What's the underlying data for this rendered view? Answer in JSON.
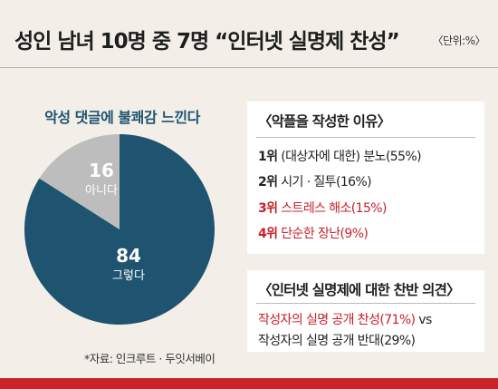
{
  "header": {
    "title": "성인 남녀 10명 중 7명 “인터넷 실명제 찬성”",
    "unit": "〈단위:%〉"
  },
  "chart_data": {
    "type": "pie",
    "title": "악성 댓글에 불쾌감 느낀다",
    "slices": [
      {
        "label": "그렇다",
        "value": 84,
        "color": "#1f5470"
      },
      {
        "label": "아니다",
        "value": 16,
        "color": "#bdbdbd"
      }
    ]
  },
  "source": "*자료: 인크루트 · 두잇서베이",
  "reasons_panel": {
    "title": "〈악플을 작성한 이유〉",
    "items": [
      {
        "rank": "1위",
        "text": "(대상자에 대한) 분노(55%)",
        "color": "dark"
      },
      {
        "rank": "2위",
        "text": "시기 · 질투(16%)",
        "color": "dark"
      },
      {
        "rank": "3위",
        "text": "스트레스 해소(15%)",
        "color": "red"
      },
      {
        "rank": "4위",
        "text": "단순한 장난(9%)",
        "color": "red"
      }
    ]
  },
  "opinion_panel": {
    "title": "〈인터넷 실명제에 대한 찬반 의견〉",
    "agree": "작성자의 실명 공개 찬성(71%)",
    "vs": "vs",
    "disagree": "작성자의 실명 공개 반대(29%)"
  },
  "colors": {
    "accent_red": "#c8202a",
    "navy": "#1f5470",
    "gray": "#bdbdbd",
    "background": "#f3efe8"
  }
}
